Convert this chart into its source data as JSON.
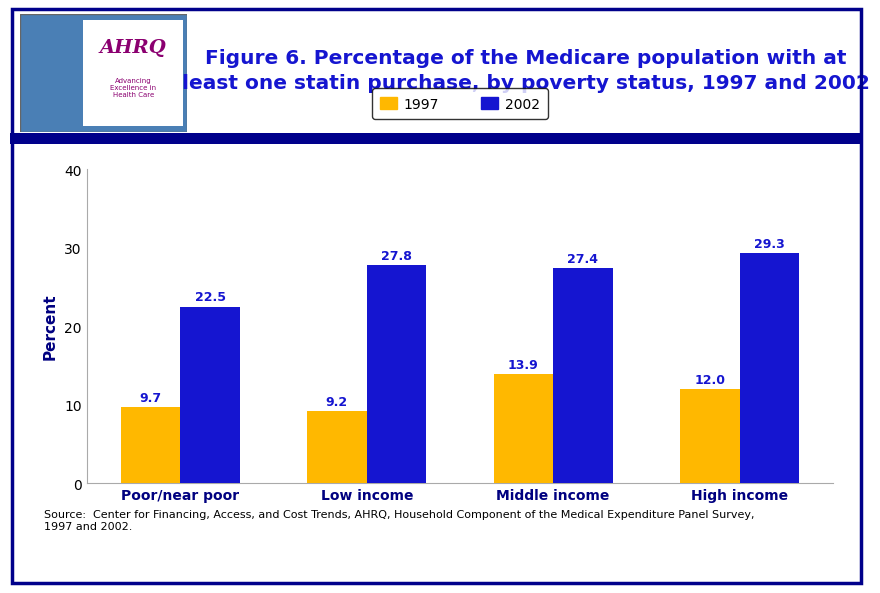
{
  "categories": [
    "Poor/near poor",
    "Low income",
    "Middle income",
    "High income"
  ],
  "values_1997": [
    9.7,
    9.2,
    13.9,
    12.0
  ],
  "values_2002": [
    22.5,
    27.8,
    27.4,
    29.3
  ],
  "color_1997": "#FFB800",
  "color_2002": "#1515D0",
  "ylabel": "Percent",
  "ylim": [
    0,
    40
  ],
  "yticks": [
    0,
    10,
    20,
    30,
    40
  ],
  "legend_labels": [
    "1997",
    "2002"
  ],
  "title_line1": "Figure 6. Percentage of the Medicare population with at",
  "title_line2": "least one statin purchase, by poverty status, 1997 and 2002",
  "source_text": "Source:  Center for Financing, Access, and Cost Trends, AHRQ, Household Component of the Medical Expenditure Panel Survey,\n1997 and 2002.",
  "bar_width": 0.32,
  "background_color": "#FFFFFF",
  "title_color": "#1515D0",
  "label_color": "#1515D0",
  "axis_label_fontsize": 11,
  "tick_label_fontsize": 10,
  "bar_label_fontsize": 9,
  "source_fontsize": 8,
  "border_color": "#00008B",
  "separator_color": "#00008B",
  "xticklabel_color": "#000080",
  "ylabel_color": "#000080"
}
